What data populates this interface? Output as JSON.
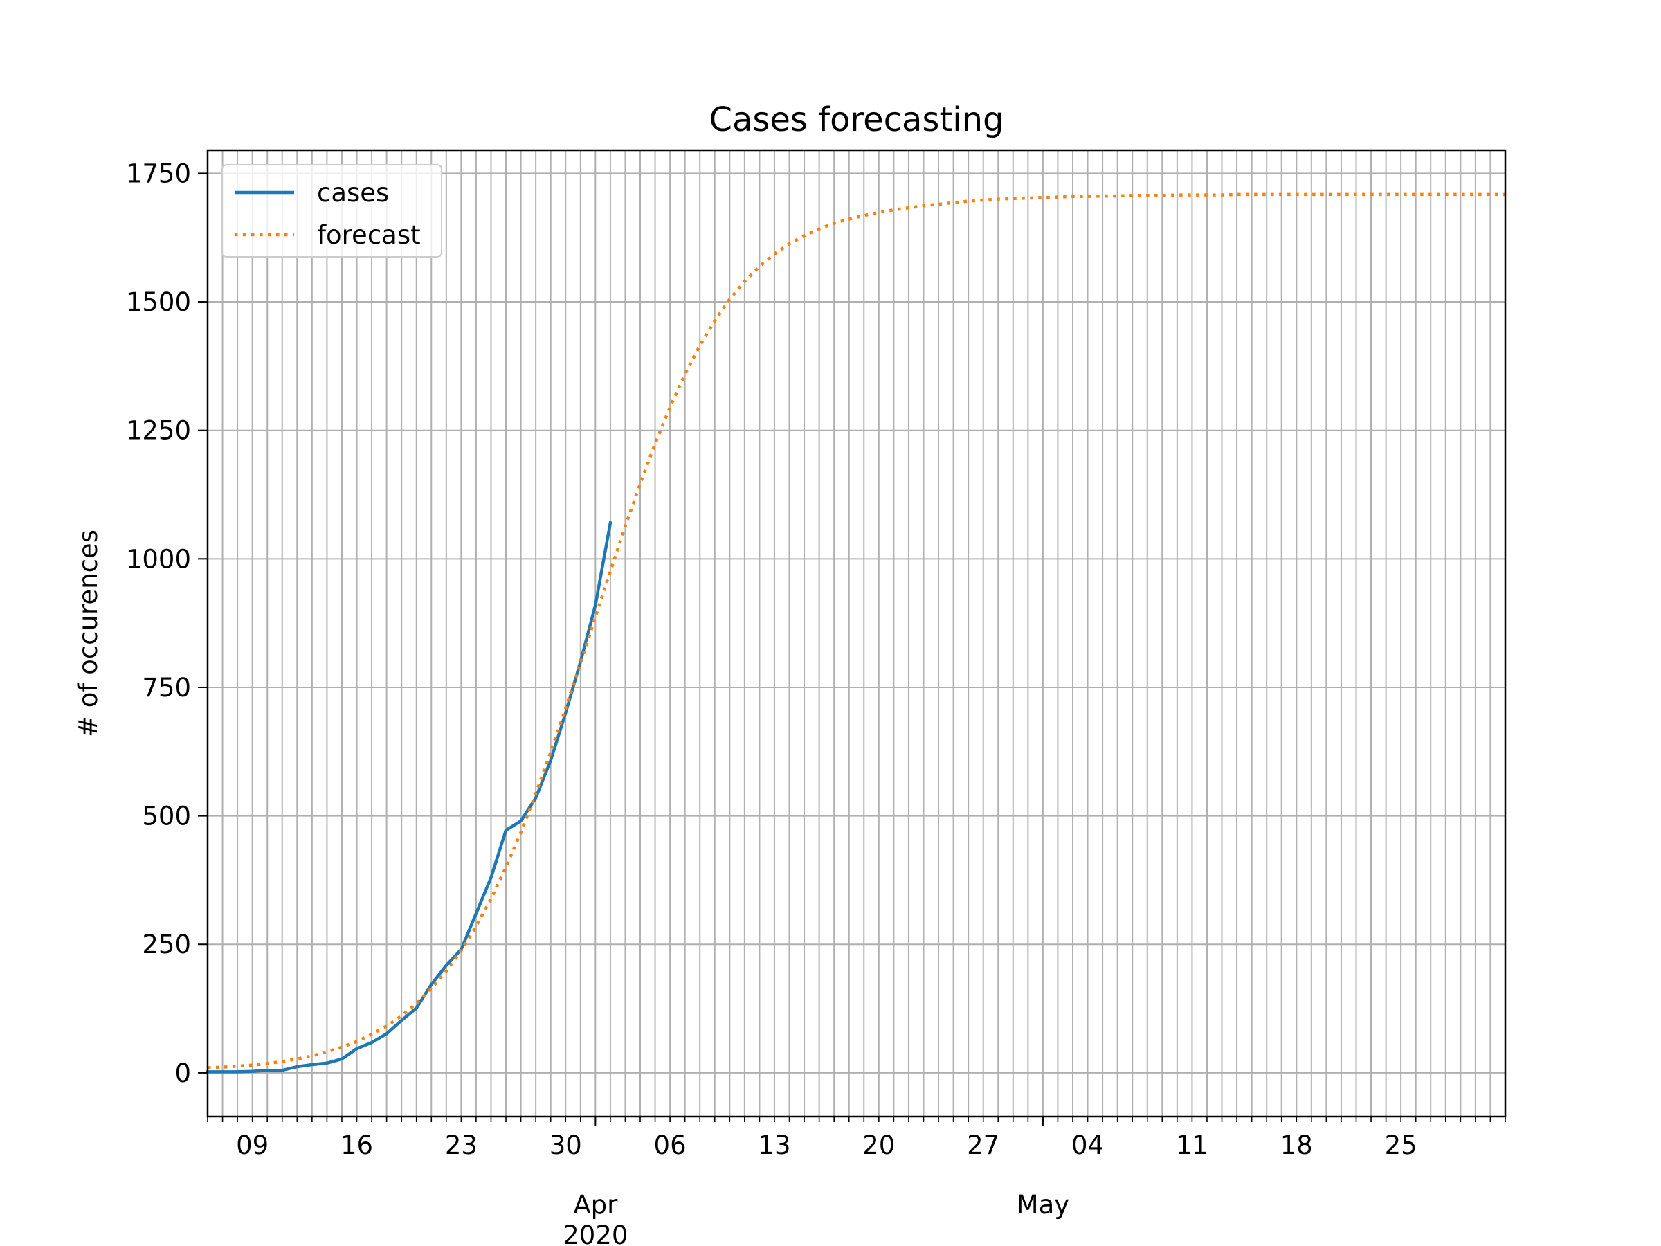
{
  "chart_data": {
    "type": "line",
    "title": "Cases forecasting",
    "xlabel": "",
    "ylabel": "# of occurences",
    "x_start": "2020-03-06",
    "x_end": "2020-06-01",
    "xlim": [
      "2020-03-06",
      "2020-06-01"
    ],
    "ylim": [
      -85,
      1795
    ],
    "y_ticks": [
      0,
      250,
      500,
      750,
      1000,
      1250,
      1500,
      1750
    ],
    "y_tick_labels": [
      "0",
      "250",
      "500",
      "750",
      "1000",
      "1250",
      "1500",
      "1750"
    ],
    "x_major_ticks": [
      {
        "date": "2020-03-09",
        "label": "09"
      },
      {
        "date": "2020-03-16",
        "label": "16"
      },
      {
        "date": "2020-03-23",
        "label": "23"
      },
      {
        "date": "2020-03-30",
        "label": "30"
      },
      {
        "date": "2020-04-06",
        "label": "06"
      },
      {
        "date": "2020-04-13",
        "label": "13"
      },
      {
        "date": "2020-04-20",
        "label": "20"
      },
      {
        "date": "2020-04-27",
        "label": "27"
      },
      {
        "date": "2020-05-04",
        "label": "04"
      },
      {
        "date": "2020-05-11",
        "label": "11"
      },
      {
        "date": "2020-05-18",
        "label": "18"
      },
      {
        "date": "2020-05-25",
        "label": "25"
      }
    ],
    "x_month_labels": [
      {
        "date": "2020-04-01",
        "label": "Apr",
        "year": "2020"
      },
      {
        "date": "2020-05-01",
        "label": "May"
      }
    ],
    "grid": true,
    "legend_position": "top-left",
    "series": [
      {
        "name": "cases",
        "color": "#1f77b4",
        "style": "solid",
        "points": [
          [
            "2020-03-06",
            2
          ],
          [
            "2020-03-07",
            2
          ],
          [
            "2020-03-08",
            2
          ],
          [
            "2020-03-09",
            3
          ],
          [
            "2020-03-10",
            5
          ],
          [
            "2020-03-11",
            5
          ],
          [
            "2020-03-12",
            12
          ],
          [
            "2020-03-13",
            16
          ],
          [
            "2020-03-14",
            19
          ],
          [
            "2020-03-15",
            27
          ],
          [
            "2020-03-16",
            47
          ],
          [
            "2020-03-17",
            59
          ],
          [
            "2020-03-18",
            76
          ],
          [
            "2020-03-19",
            102
          ],
          [
            "2020-03-20",
            126
          ],
          [
            "2020-03-21",
            172
          ],
          [
            "2020-03-22",
            209
          ],
          [
            "2020-03-23",
            240
          ],
          [
            "2020-03-24",
            310
          ],
          [
            "2020-03-25",
            380
          ],
          [
            "2020-03-26",
            472
          ],
          [
            "2020-03-27",
            490
          ],
          [
            "2020-03-28",
            535
          ],
          [
            "2020-03-29",
            608
          ],
          [
            "2020-03-30",
            700
          ],
          [
            "2020-03-31",
            800
          ],
          [
            "2020-04-01",
            910
          ],
          [
            "2020-04-02",
            1070
          ]
        ]
      },
      {
        "name": "forecast",
        "color": "#ff7f0e",
        "style": "dotted",
        "points": [
          [
            "2020-03-06",
            10
          ],
          [
            "2020-03-07",
            11
          ],
          [
            "2020-03-08",
            13
          ],
          [
            "2020-03-09",
            15
          ],
          [
            "2020-03-10",
            18
          ],
          [
            "2020-03-11",
            22
          ],
          [
            "2020-03-12",
            27
          ],
          [
            "2020-03-13",
            33
          ],
          [
            "2020-03-14",
            41
          ],
          [
            "2020-03-15",
            50
          ],
          [
            "2020-03-16",
            61
          ],
          [
            "2020-03-17",
            75
          ],
          [
            "2020-03-18",
            91
          ],
          [
            "2020-03-19",
            111
          ],
          [
            "2020-03-20",
            135
          ],
          [
            "2020-03-21",
            164
          ],
          [
            "2020-03-22",
            198
          ],
          [
            "2020-03-23",
            238
          ],
          [
            "2020-03-24",
            285
          ],
          [
            "2020-03-25",
            339
          ],
          [
            "2020-03-26",
            400
          ],
          [
            "2020-03-27",
            468
          ],
          [
            "2020-03-28",
            543
          ],
          [
            "2020-03-29",
            624
          ],
          [
            "2020-03-30",
            709
          ],
          [
            "2020-03-31",
            797
          ],
          [
            "2020-04-01",
            887
          ],
          [
            "2020-04-02",
            976
          ],
          [
            "2020-04-03",
            1063
          ],
          [
            "2020-04-04",
            1146
          ],
          [
            "2020-04-05",
            1224
          ],
          [
            "2020-04-06",
            1295
          ],
          [
            "2020-04-07",
            1359
          ],
          [
            "2020-04-08",
            1415
          ],
          [
            "2020-04-09",
            1463
          ],
          [
            "2020-04-10",
            1505
          ],
          [
            "2020-04-11",
            1540
          ],
          [
            "2020-04-12",
            1569
          ],
          [
            "2020-04-13",
            1593
          ],
          [
            "2020-04-14",
            1613
          ],
          [
            "2020-04-15",
            1629
          ],
          [
            "2020-04-16",
            1642
          ],
          [
            "2020-04-17",
            1653
          ],
          [
            "2020-04-18",
            1661
          ],
          [
            "2020-04-19",
            1668
          ],
          [
            "2020-04-20",
            1674
          ],
          [
            "2020-04-21",
            1679
          ],
          [
            "2020-04-22",
            1683
          ],
          [
            "2020-04-23",
            1687
          ],
          [
            "2020-04-24",
            1690
          ],
          [
            "2020-04-25",
            1693
          ],
          [
            "2020-04-26",
            1696
          ],
          [
            "2020-04-27",
            1698
          ],
          [
            "2020-04-28",
            1700
          ],
          [
            "2020-04-29",
            1701
          ],
          [
            "2020-04-30",
            1702
          ],
          [
            "2020-05-01",
            1703
          ],
          [
            "2020-05-02",
            1704
          ],
          [
            "2020-05-03",
            1705
          ],
          [
            "2020-05-04",
            1705
          ],
          [
            "2020-05-05",
            1706
          ],
          [
            "2020-05-06",
            1706
          ],
          [
            "2020-05-07",
            1707
          ],
          [
            "2020-05-08",
            1707
          ],
          [
            "2020-05-09",
            1707
          ],
          [
            "2020-05-10",
            1708
          ],
          [
            "2020-05-11",
            1708
          ],
          [
            "2020-05-12",
            1708
          ],
          [
            "2020-05-13",
            1708
          ],
          [
            "2020-05-14",
            1709
          ],
          [
            "2020-05-15",
            1709
          ],
          [
            "2020-05-16",
            1709
          ],
          [
            "2020-05-17",
            1709
          ],
          [
            "2020-05-18",
            1709
          ],
          [
            "2020-05-19",
            1709
          ],
          [
            "2020-05-20",
            1709
          ],
          [
            "2020-05-21",
            1709
          ],
          [
            "2020-05-22",
            1709
          ],
          [
            "2020-05-23",
            1709
          ],
          [
            "2020-05-24",
            1709
          ],
          [
            "2020-05-25",
            1709
          ],
          [
            "2020-05-26",
            1709
          ],
          [
            "2020-05-27",
            1709
          ],
          [
            "2020-05-28",
            1709
          ],
          [
            "2020-05-29",
            1709
          ],
          [
            "2020-05-30",
            1709
          ],
          [
            "2020-05-31",
            1709
          ],
          [
            "2020-06-01",
            1709
          ]
        ]
      }
    ]
  }
}
